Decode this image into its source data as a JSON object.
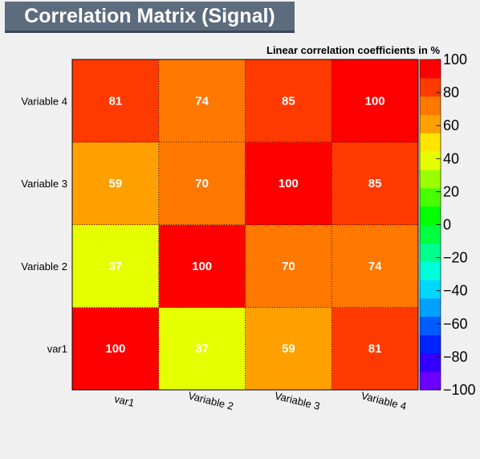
{
  "header": {
    "title": "Correlation Matrix (Signal)"
  },
  "chart_data": {
    "type": "heatmap",
    "title": "Correlation Matrix (Signal)",
    "colorbar_title": "Linear correlation coefficients in %",
    "x_categories": [
      "var1",
      "Variable 2",
      "Variable 3",
      "Variable 4"
    ],
    "y_categories": [
      "var1",
      "Variable 2",
      "Variable 3",
      "Variable 4"
    ],
    "values": [
      [
        100,
        37,
        59,
        81
      ],
      [
        37,
        100,
        70,
        74
      ],
      [
        59,
        70,
        100,
        85
      ],
      [
        81,
        74,
        85,
        100
      ]
    ],
    "zlim": [
      -100,
      100
    ],
    "zticks": [
      "100",
      "80",
      "60",
      "40",
      "20",
      "0",
      "−20",
      "−40",
      "−60",
      "−80",
      "−100"
    ],
    "palette": [
      "#6a00ff",
      "#3300ff",
      "#0022ff",
      "#005cff",
      "#00a0ff",
      "#00d8ff",
      "#00ffd8",
      "#00ff8c",
      "#00ff40",
      "#00ff00",
      "#46ff00",
      "#9aff00",
      "#e6ff00",
      "#ffe600",
      "#ffa000",
      "#ff7800",
      "#ff3a00",
      "#ff0000"
    ],
    "grid": true
  }
}
